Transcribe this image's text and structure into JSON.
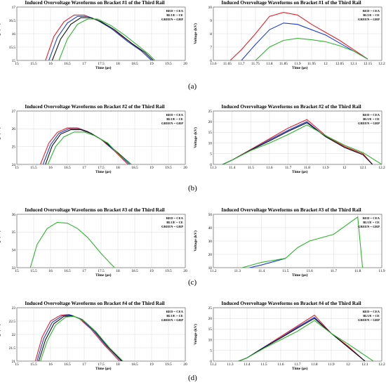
{
  "colors": {
    "red": "#e8202a",
    "blue": "#1c3fd0",
    "green": "#2fb52f",
    "black": "#111111",
    "grid": "#d0d0d0"
  },
  "captions": [
    "(a)",
    "(b)",
    "(c)",
    "(d)"
  ],
  "chart_data": [
    {
      "type": "line",
      "title": "Induced Overvoltage Waveforms on Bracket #1 of the Third Rail",
      "xlabel": "Time (μs)",
      "ylabel": "Voltage (kV)",
      "xlim": [
        15,
        20
      ],
      "ylim": [
        15,
        17
      ],
      "xticks": [
        "15",
        "15.5",
        "16",
        "16.5",
        "17",
        "17.5",
        "18",
        "18.5",
        "19",
        "19.5",
        "20"
      ],
      "yticks": [
        "15",
        "15.5",
        "16",
        "16.5",
        "17"
      ],
      "legend": [
        "RED = CEA",
        "BLUE = CE",
        "GREEN = GRP"
      ],
      "series": [
        {
          "color": "red",
          "x": [
            15.85,
            16.1,
            16.4,
            16.7,
            17.0,
            17.4,
            17.8,
            18.3,
            18.7,
            19.0
          ],
          "y": [
            15.0,
            15.9,
            16.45,
            16.7,
            16.7,
            16.5,
            16.2,
            15.75,
            15.35,
            15.0
          ]
        },
        {
          "color": "blue",
          "x": [
            15.95,
            16.2,
            16.5,
            16.8,
            17.1,
            17.4,
            17.8,
            18.3,
            18.7,
            19.0
          ],
          "y": [
            15.0,
            15.85,
            16.4,
            16.65,
            16.65,
            16.5,
            16.2,
            15.7,
            15.35,
            15.0
          ]
        },
        {
          "color": "black",
          "x": [
            16.05,
            16.3,
            16.6,
            16.9,
            17.2,
            17.5,
            17.9,
            18.4,
            18.8,
            19.05
          ],
          "y": [
            15.0,
            15.8,
            16.35,
            16.6,
            16.6,
            16.45,
            16.15,
            15.65,
            15.3,
            15.0
          ]
        },
        {
          "color": "green",
          "x": [
            16.25,
            16.5,
            16.8,
            17.1,
            17.4,
            17.8,
            18.2,
            18.6,
            18.9,
            19.1
          ],
          "y": [
            15.0,
            15.8,
            16.35,
            16.55,
            16.55,
            16.3,
            15.95,
            15.55,
            15.25,
            15.0
          ]
        }
      ]
    },
    {
      "type": "line",
      "title": "Induced Overvoltage Waveforms on Bracket #1 of the Third Rail",
      "xlabel": "Time (μs)",
      "ylabel": "Voltage (kV)",
      "xlim": [
        11.6,
        12.2
      ],
      "ylim": [
        6,
        10
      ],
      "xticks": [
        "11.6",
        "11.65",
        "11.7",
        "11.75",
        "11.8",
        "11.85",
        "11.9",
        "11.95",
        "12",
        "12.05",
        "12.1",
        "12.15",
        "12.2"
      ],
      "yticks": [
        "6",
        "7",
        "8",
        "9",
        "10"
      ],
      "legend": [
        "RED = CEA",
        "BLUE = CE",
        "GREEN = GRP"
      ],
      "series": [
        {
          "color": "red",
          "x": [
            11.66,
            11.7,
            11.75,
            11.8,
            11.85,
            11.9,
            11.95,
            12.0,
            12.05,
            12.1,
            12.15
          ],
          "y": [
            6.0,
            6.8,
            8.0,
            9.3,
            9.6,
            9.4,
            8.7,
            8.1,
            7.5,
            6.8,
            6.1
          ]
        },
        {
          "color": "blue",
          "x": [
            11.7,
            11.75,
            11.8,
            11.85,
            11.9,
            11.95,
            12.0,
            12.05,
            12.1,
            12.15
          ],
          "y": [
            6.0,
            7.2,
            8.3,
            8.8,
            8.7,
            8.3,
            7.9,
            7.3,
            6.7,
            6.1
          ]
        },
        {
          "color": "green",
          "x": [
            11.75,
            11.8,
            11.85,
            11.9,
            11.95,
            12.0,
            12.05,
            12.1,
            12.15
          ],
          "y": [
            6.0,
            7.0,
            7.5,
            7.65,
            7.55,
            7.4,
            7.1,
            6.7,
            6.1
          ]
        }
      ]
    },
    {
      "type": "line",
      "title": "Induced Overvoltage Waveforms on Bracket #2 of the Third Rail",
      "xlabel": "Time (μs)",
      "ylabel": "Voltage (kV)",
      "xlim": [
        15,
        20
      ],
      "ylim": [
        24,
        27
      ],
      "xticks": [
        "15",
        "15.5",
        "16",
        "16.5",
        "17",
        "17.5",
        "18",
        "18.5",
        "19",
        "19.5",
        "20"
      ],
      "yticks": [
        "24",
        "25",
        "26",
        "27"
      ],
      "legend": [
        "RED = CEA",
        "BLUE = CE",
        "GREEN = GRP"
      ],
      "series": [
        {
          "color": "red",
          "x": [
            15.7,
            15.95,
            16.2,
            16.5,
            16.8,
            17.1,
            17.5,
            17.9,
            18.3
          ],
          "y": [
            24.0,
            25.2,
            25.8,
            26.05,
            26.05,
            25.85,
            25.4,
            24.75,
            24.0
          ]
        },
        {
          "color": "blue",
          "x": [
            15.78,
            16.0,
            16.25,
            16.55,
            16.85,
            17.15,
            17.55,
            17.95,
            18.35
          ],
          "y": [
            24.0,
            25.1,
            25.75,
            26.0,
            26.0,
            25.8,
            25.35,
            24.7,
            24.0
          ]
        },
        {
          "color": "black",
          "x": [
            15.85,
            16.05,
            16.3,
            16.6,
            16.9,
            17.2,
            17.6,
            18.0,
            18.4
          ],
          "y": [
            24.0,
            25.05,
            25.7,
            25.95,
            25.95,
            25.75,
            25.3,
            24.65,
            24.0
          ]
        },
        {
          "color": "green",
          "x": [
            15.92,
            16.15,
            16.4,
            16.7,
            17.0,
            17.3,
            17.7,
            18.0,
            18.4
          ],
          "y": [
            24.0,
            25.0,
            25.55,
            25.82,
            25.82,
            25.62,
            25.2,
            24.6,
            24.0
          ]
        }
      ]
    },
    {
      "type": "line",
      "title": "Induced Overvoltage Waveforms on Bracket #2 of the Third Rail",
      "xlabel": "Time (μs)",
      "ylabel": "Voltage (kV)",
      "xlim": [
        11.3,
        12.2
      ],
      "ylim": [
        0,
        25
      ],
      "xticks": [
        "11.3",
        "11.4",
        "11.5",
        "11.6",
        "11.7",
        "11.8",
        "11.9",
        "12",
        "12.1",
        "12.2"
      ],
      "yticks": [
        "0",
        "5",
        "10",
        "15",
        "20",
        "25"
      ],
      "legend": [
        "RED = CEA",
        "BLUE = CE",
        "GREEN = GRP"
      ],
      "series": [
        {
          "color": "red",
          "x": [
            11.35,
            11.4,
            11.5,
            11.6,
            11.7,
            11.8,
            11.9,
            12.0,
            12.1,
            12.15
          ],
          "y": [
            0,
            2,
            7,
            12,
            17,
            21,
            13.5,
            8.5,
            5,
            0
          ]
        },
        {
          "color": "blue",
          "x": [
            11.35,
            11.4,
            11.5,
            11.6,
            11.7,
            11.8,
            11.9,
            12.0,
            12.1,
            12.15
          ],
          "y": [
            0,
            2,
            6.8,
            11.5,
            16,
            20,
            13,
            8,
            4.5,
            0
          ]
        },
        {
          "color": "black",
          "x": [
            11.35,
            11.4,
            11.5,
            11.6,
            11.7,
            11.8,
            11.9,
            12.0,
            12.1,
            12.15
          ],
          "y": [
            0,
            2,
            6.7,
            11,
            15.5,
            19.5,
            13,
            8,
            4.5,
            0
          ]
        },
        {
          "color": "green",
          "x": [
            11.35,
            11.4,
            11.5,
            11.6,
            11.7,
            11.8,
            11.9,
            12.0,
            12.1,
            12.2
          ],
          "y": [
            0,
            2,
            6.5,
            10,
            14,
            18.5,
            13.5,
            9,
            5.5,
            0
          ]
        }
      ]
    },
    {
      "type": "line",
      "title": "Induced Overvoltage Waveforms on Bracket #3 of the Third Rail",
      "xlabel": "Time (μs)",
      "ylabel": "Voltage (kV)",
      "xlim": [
        15,
        20
      ],
      "ylim": [
        33,
        36
      ],
      "xticks": [
        "15",
        "15.5",
        "16",
        "16.5",
        "17",
        "17.5",
        "18",
        "18.5",
        "19",
        "19.5",
        "20"
      ],
      "yticks": [
        "33",
        "34",
        "35",
        "36"
      ],
      "legend": [
        "RED = CEA",
        "BLUE = CE",
        "GREEN = GRP"
      ],
      "series": [
        {
          "color": "green",
          "x": [
            15.4,
            15.6,
            15.9,
            16.2,
            16.5,
            16.8,
            17.1,
            17.5,
            17.9
          ],
          "y": [
            33.0,
            34.3,
            35.2,
            35.55,
            35.5,
            35.2,
            34.7,
            33.8,
            33.0
          ]
        }
      ]
    },
    {
      "type": "line",
      "title": "Induced Overvoltage Waveforms on Bracket #3 of the Third Rail",
      "xlabel": "Time (μs)",
      "ylabel": "Voltage (kV)",
      "xlim": [
        11.2,
        11.9
      ],
      "ylim": [
        10,
        50
      ],
      "xticks": [
        "11.2",
        "11.3",
        "11.4",
        "11.5",
        "11.6",
        "11.7",
        "11.8",
        "11.9"
      ],
      "yticks": [
        "10",
        "20",
        "30",
        "40",
        "50"
      ],
      "legend": [
        "RED = CEA",
        "BLUE = CE",
        "GREEN = GRP"
      ],
      "series": [
        {
          "color": "blue",
          "x": [
            11.35,
            11.4,
            11.5
          ],
          "y": [
            10,
            12,
            17
          ]
        },
        {
          "color": "green",
          "x": [
            11.32,
            11.4,
            11.5,
            11.55,
            11.6,
            11.7,
            11.8,
            11.82
          ],
          "y": [
            10,
            14,
            17,
            25,
            30,
            35,
            48,
            10
          ]
        }
      ]
    },
    {
      "type": "line",
      "title": "Induced Overvoltage Waveforms on Bracket #4 of the Third Rail",
      "xlabel": "Time (μs)",
      "ylabel": "Voltage (kV)",
      "xlim": [
        15,
        20
      ],
      "ylim": [
        21,
        23
      ],
      "xticks": [
        "15",
        "15.5",
        "16",
        "16.5",
        "17",
        "17.5",
        "18",
        "18.5",
        "19",
        "19.5",
        "20"
      ],
      "yticks": [
        "21",
        "21.5",
        "22",
        "22.5",
        "23"
      ],
      "legend": [
        "RED = CEA",
        "BLUE = CE",
        "GREEN = GRP"
      ],
      "series": [
        {
          "color": "red",
          "x": [
            15.55,
            15.75,
            16.0,
            16.3,
            16.55,
            16.85,
            17.2,
            17.6,
            18.05
          ],
          "y": [
            21.0,
            21.9,
            22.5,
            22.72,
            22.75,
            22.6,
            22.2,
            21.6,
            21.0
          ]
        },
        {
          "color": "blue",
          "x": [
            15.6,
            15.8,
            16.05,
            16.35,
            16.6,
            16.9,
            17.25,
            17.65,
            18.1
          ],
          "y": [
            21.0,
            21.85,
            22.45,
            22.7,
            22.72,
            22.58,
            22.18,
            21.58,
            21.0
          ]
        },
        {
          "color": "black",
          "x": [
            15.65,
            15.85,
            16.1,
            16.4,
            16.65,
            16.95,
            17.3,
            17.7,
            18.12
          ],
          "y": [
            21.0,
            21.8,
            22.4,
            22.68,
            22.7,
            22.55,
            22.15,
            21.55,
            21.0
          ]
        },
        {
          "color": "green",
          "x": [
            15.7,
            15.9,
            16.15,
            16.45,
            16.7,
            17.0,
            17.35,
            17.75,
            18.15
          ],
          "y": [
            21.0,
            21.75,
            22.35,
            22.65,
            22.68,
            22.5,
            22.1,
            21.5,
            21.0
          ]
        }
      ]
    },
    {
      "type": "line",
      "title": "Induced Overvoltage Waveforms on Bracket #4 of the Third Rail",
      "xlabel": "Time (μs)",
      "ylabel": "Voltage (kV)",
      "xlim": [
        11.2,
        12.2
      ],
      "ylim": [
        0,
        25
      ],
      "xticks": [
        "11.2",
        "11.3",
        "11.4",
        "11.5",
        "11.6",
        "11.7",
        "11.8",
        "11.9",
        "12",
        "12.1",
        "12.2"
      ],
      "yticks": [
        "0",
        "5",
        "10",
        "15",
        "20",
        "25"
      ],
      "legend": [
        "RED = CEA",
        "BLUE = CE",
        "GREEN = GRP"
      ],
      "series": [
        {
          "color": "red",
          "x": [
            11.35,
            11.4,
            11.5,
            11.6,
            11.7,
            11.8,
            11.9,
            12.0,
            12.1
          ],
          "y": [
            0,
            1.5,
            6.5,
            11.5,
            16.5,
            21.5,
            13,
            7,
            0
          ]
        },
        {
          "color": "blue",
          "x": [
            11.35,
            11.4,
            11.5,
            11.6,
            11.7,
            11.8,
            11.9,
            12.0,
            12.1
          ],
          "y": [
            0,
            1.5,
            6.5,
            11,
            16,
            20.5,
            13,
            6.5,
            0
          ]
        },
        {
          "color": "black",
          "x": [
            11.35,
            11.4,
            11.5,
            11.6,
            11.7,
            11.8,
            11.9,
            12.0,
            12.1
          ],
          "y": [
            0,
            1.5,
            6.3,
            10.8,
            15.5,
            20,
            13,
            6.5,
            0
          ]
        },
        {
          "color": "green",
          "x": [
            11.35,
            11.4,
            11.5,
            11.6,
            11.7,
            11.8,
            11.9,
            12.0,
            12.15
          ],
          "y": [
            0,
            1.5,
            6,
            10,
            14,
            19,
            13,
            8,
            0
          ]
        }
      ]
    }
  ]
}
